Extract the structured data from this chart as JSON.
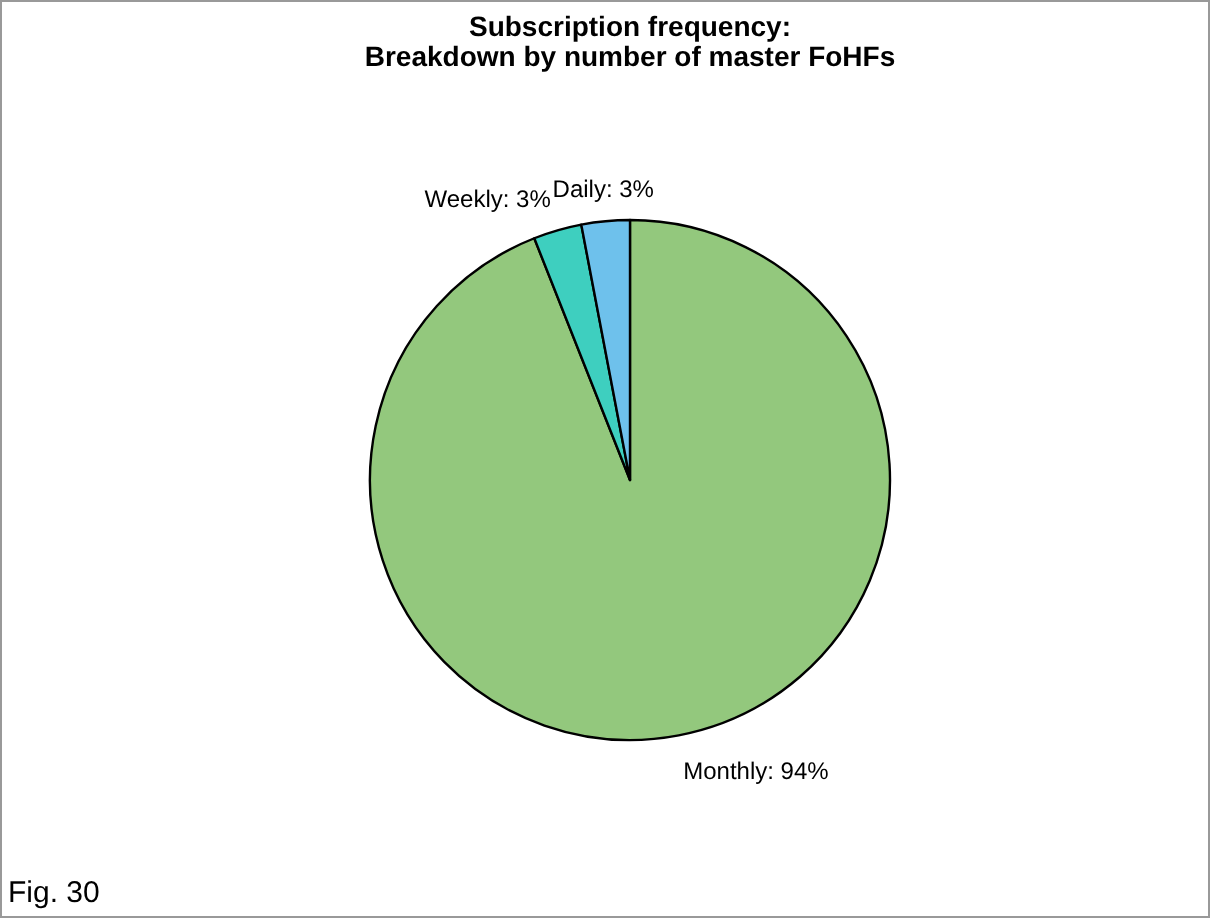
{
  "chart_data": {
    "type": "pie",
    "title": "Subscription frequency:\nBreakdown by number of master FoHFs",
    "categories": [
      "Monthly",
      "Weekly",
      "Daily"
    ],
    "values": [
      94,
      3,
      3
    ],
    "value_labels": [
      "94%",
      "3%",
      "3%"
    ],
    "colors": [
      "#93c87d",
      "#3ecfbf",
      "#6ec1ec"
    ],
    "annotations": [
      "Fig. 30"
    ]
  }
}
